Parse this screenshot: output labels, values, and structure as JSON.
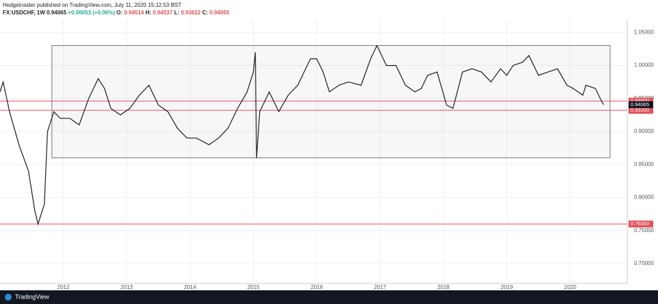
{
  "chart_data": {
    "type": "line",
    "title": "HedgeInsider published on TradingView.com, July 11, 2020 15:12:53 BST",
    "symbol": "FX:USDCHF, 1W",
    "quote": "0.94065",
    "change": "+0.00053 (+0.06%)",
    "ohlc": [
      {
        "label": "O:",
        "value": "0.94514"
      },
      {
        "label": "H:",
        "value": "0.94537"
      },
      {
        "label": "L:",
        "value": "0.93622"
      },
      {
        "label": "C:",
        "value": "0.94065"
      }
    ],
    "x": [
      2011.0,
      2011.05,
      2011.15,
      2011.3,
      2011.45,
      2011.55,
      2011.6,
      2011.7,
      2011.75,
      2011.85,
      2011.95,
      2012.1,
      2012.25,
      2012.4,
      2012.55,
      2012.65,
      2012.75,
      2012.9,
      2013.05,
      2013.2,
      2013.35,
      2013.5,
      2013.65,
      2013.8,
      2013.95,
      2014.1,
      2014.3,
      2014.45,
      2014.6,
      2014.75,
      2014.9,
      2015.0,
      2015.03,
      2015.05,
      2015.1,
      2015.25,
      2015.4,
      2015.55,
      2015.7,
      2015.8,
      2015.9,
      2016.0,
      2016.1,
      2016.2,
      2016.35,
      2016.5,
      2016.7,
      2016.85,
      2016.95,
      2017.1,
      2017.25,
      2017.4,
      2017.55,
      2017.65,
      2017.75,
      2017.9,
      2018.05,
      2018.15,
      2018.3,
      2018.45,
      2018.6,
      2018.75,
      2018.9,
      2019.0,
      2019.1,
      2019.25,
      2019.35,
      2019.5,
      2019.65,
      2019.8,
      2019.95,
      2020.05,
      2020.2,
      2020.25,
      2020.4,
      2020.5,
      2020.53
    ],
    "values": [
      0.96,
      0.975,
      0.93,
      0.88,
      0.84,
      0.78,
      0.76,
      0.79,
      0.9,
      0.93,
      0.92,
      0.92,
      0.91,
      0.95,
      0.98,
      0.965,
      0.935,
      0.925,
      0.935,
      0.955,
      0.97,
      0.94,
      0.93,
      0.905,
      0.89,
      0.89,
      0.88,
      0.89,
      0.905,
      0.935,
      0.96,
      0.99,
      1.02,
      0.86,
      0.93,
      0.96,
      0.93,
      0.955,
      0.97,
      0.99,
      1.01,
      1.01,
      0.99,
      0.96,
      0.97,
      0.975,
      0.97,
      1.01,
      1.03,
      1.0,
      1.0,
      0.97,
      0.96,
      0.965,
      0.985,
      0.99,
      0.94,
      0.935,
      0.99,
      0.995,
      0.99,
      0.975,
      0.995,
      0.985,
      1.0,
      1.005,
      1.015,
      0.985,
      0.99,
      0.995,
      0.97,
      0.965,
      0.955,
      0.97,
      0.965,
      0.945,
      0.9407
    ],
    "color": "#1a1a1a",
    "xlim": [
      2011.0,
      2020.9
    ],
    "xticks": [
      2012,
      2013,
      2014,
      2015,
      2016,
      2017,
      2018,
      2019,
      2020
    ],
    "ylim": [
      0.67,
      1.07
    ],
    "yticks": [
      {
        "value": 0.7,
        "label": "0.70000"
      },
      {
        "value": 0.75,
        "label": "0.75000"
      },
      {
        "value": 0.8,
        "label": "0.80000"
      },
      {
        "value": 0.85,
        "label": "0.85000"
      },
      {
        "value": 0.9,
        "label": "0.90000"
      },
      {
        "value": 0.95,
        "label": "0.95000"
      },
      {
        "value": 1.0,
        "label": "1.00000"
      },
      {
        "value": 1.05,
        "label": "1.05000"
      }
    ],
    "grid": true,
    "box": {
      "x": [
        2011.82,
        2020.63
      ],
      "y": [
        0.86,
        1.03
      ]
    },
    "hlines": [
      {
        "value": 0.946,
        "label": "0.94600"
      },
      {
        "value": 0.932,
        "label": "0.93200"
      },
      {
        "value": 0.76,
        "label": "0.76000"
      }
    ],
    "hline_color": "#e0525a",
    "last_price": 0.94065,
    "footer": "TradingView"
  }
}
